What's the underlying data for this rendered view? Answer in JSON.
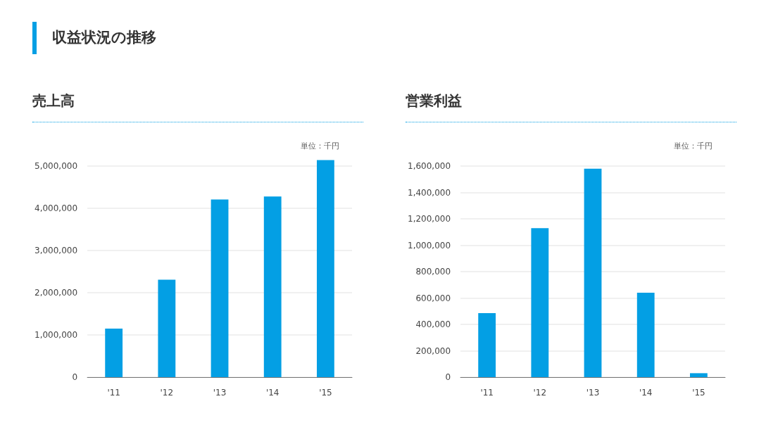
{
  "chart_data": [
    {
      "type": "other",
      "title": "収益状況の推移"
    },
    {
      "type": "bar",
      "title": "売上高",
      "annotations": [
        "単位：千円"
      ],
      "categories": [
        "'11",
        "'12",
        "'13",
        "'14",
        "'15"
      ],
      "values": [
        1150000,
        2310000,
        4210000,
        4280000,
        5140000
      ],
      "color": "#039fe4",
      "ylim": [
        0,
        5140000
      ],
      "yticks": [
        {
          "value": 0,
          "label": "0"
        },
        {
          "value": 1000000,
          "label": "1,000,000"
        },
        {
          "value": 2000000,
          "label": "2,000,000"
        },
        {
          "value": 3000000,
          "label": "3,000,000"
        },
        {
          "value": 4000000,
          "label": "4,000,000"
        },
        {
          "value": 5000000,
          "label": "5,000,000"
        }
      ],
      "grid": "y"
    },
    {
      "type": "bar",
      "title": "営業利益",
      "annotations": [
        "単位：千円"
      ],
      "categories": [
        "'11",
        "'12",
        "'13",
        "'14",
        "'15"
      ],
      "values": [
        485000,
        1130000,
        1580000,
        640000,
        30000
      ],
      "color": "#039fe4",
      "ylim": [
        0,
        1600000
      ],
      "yticks": [
        {
          "value": 0,
          "label": "0"
        },
        {
          "value": 200000,
          "label": "200,000"
        },
        {
          "value": 400000,
          "label": "400,000"
        },
        {
          "value": 600000,
          "label": "600,000"
        },
        {
          "value": 800000,
          "label": "800,000"
        },
        {
          "value": 1000000,
          "label": "1,000,000"
        },
        {
          "value": 1200000,
          "label": "1,200,000"
        },
        {
          "value": 1400000,
          "label": "1,400,000"
        },
        {
          "value": 1600000,
          "label": "1,600,000"
        }
      ],
      "grid": "y"
    }
  ]
}
